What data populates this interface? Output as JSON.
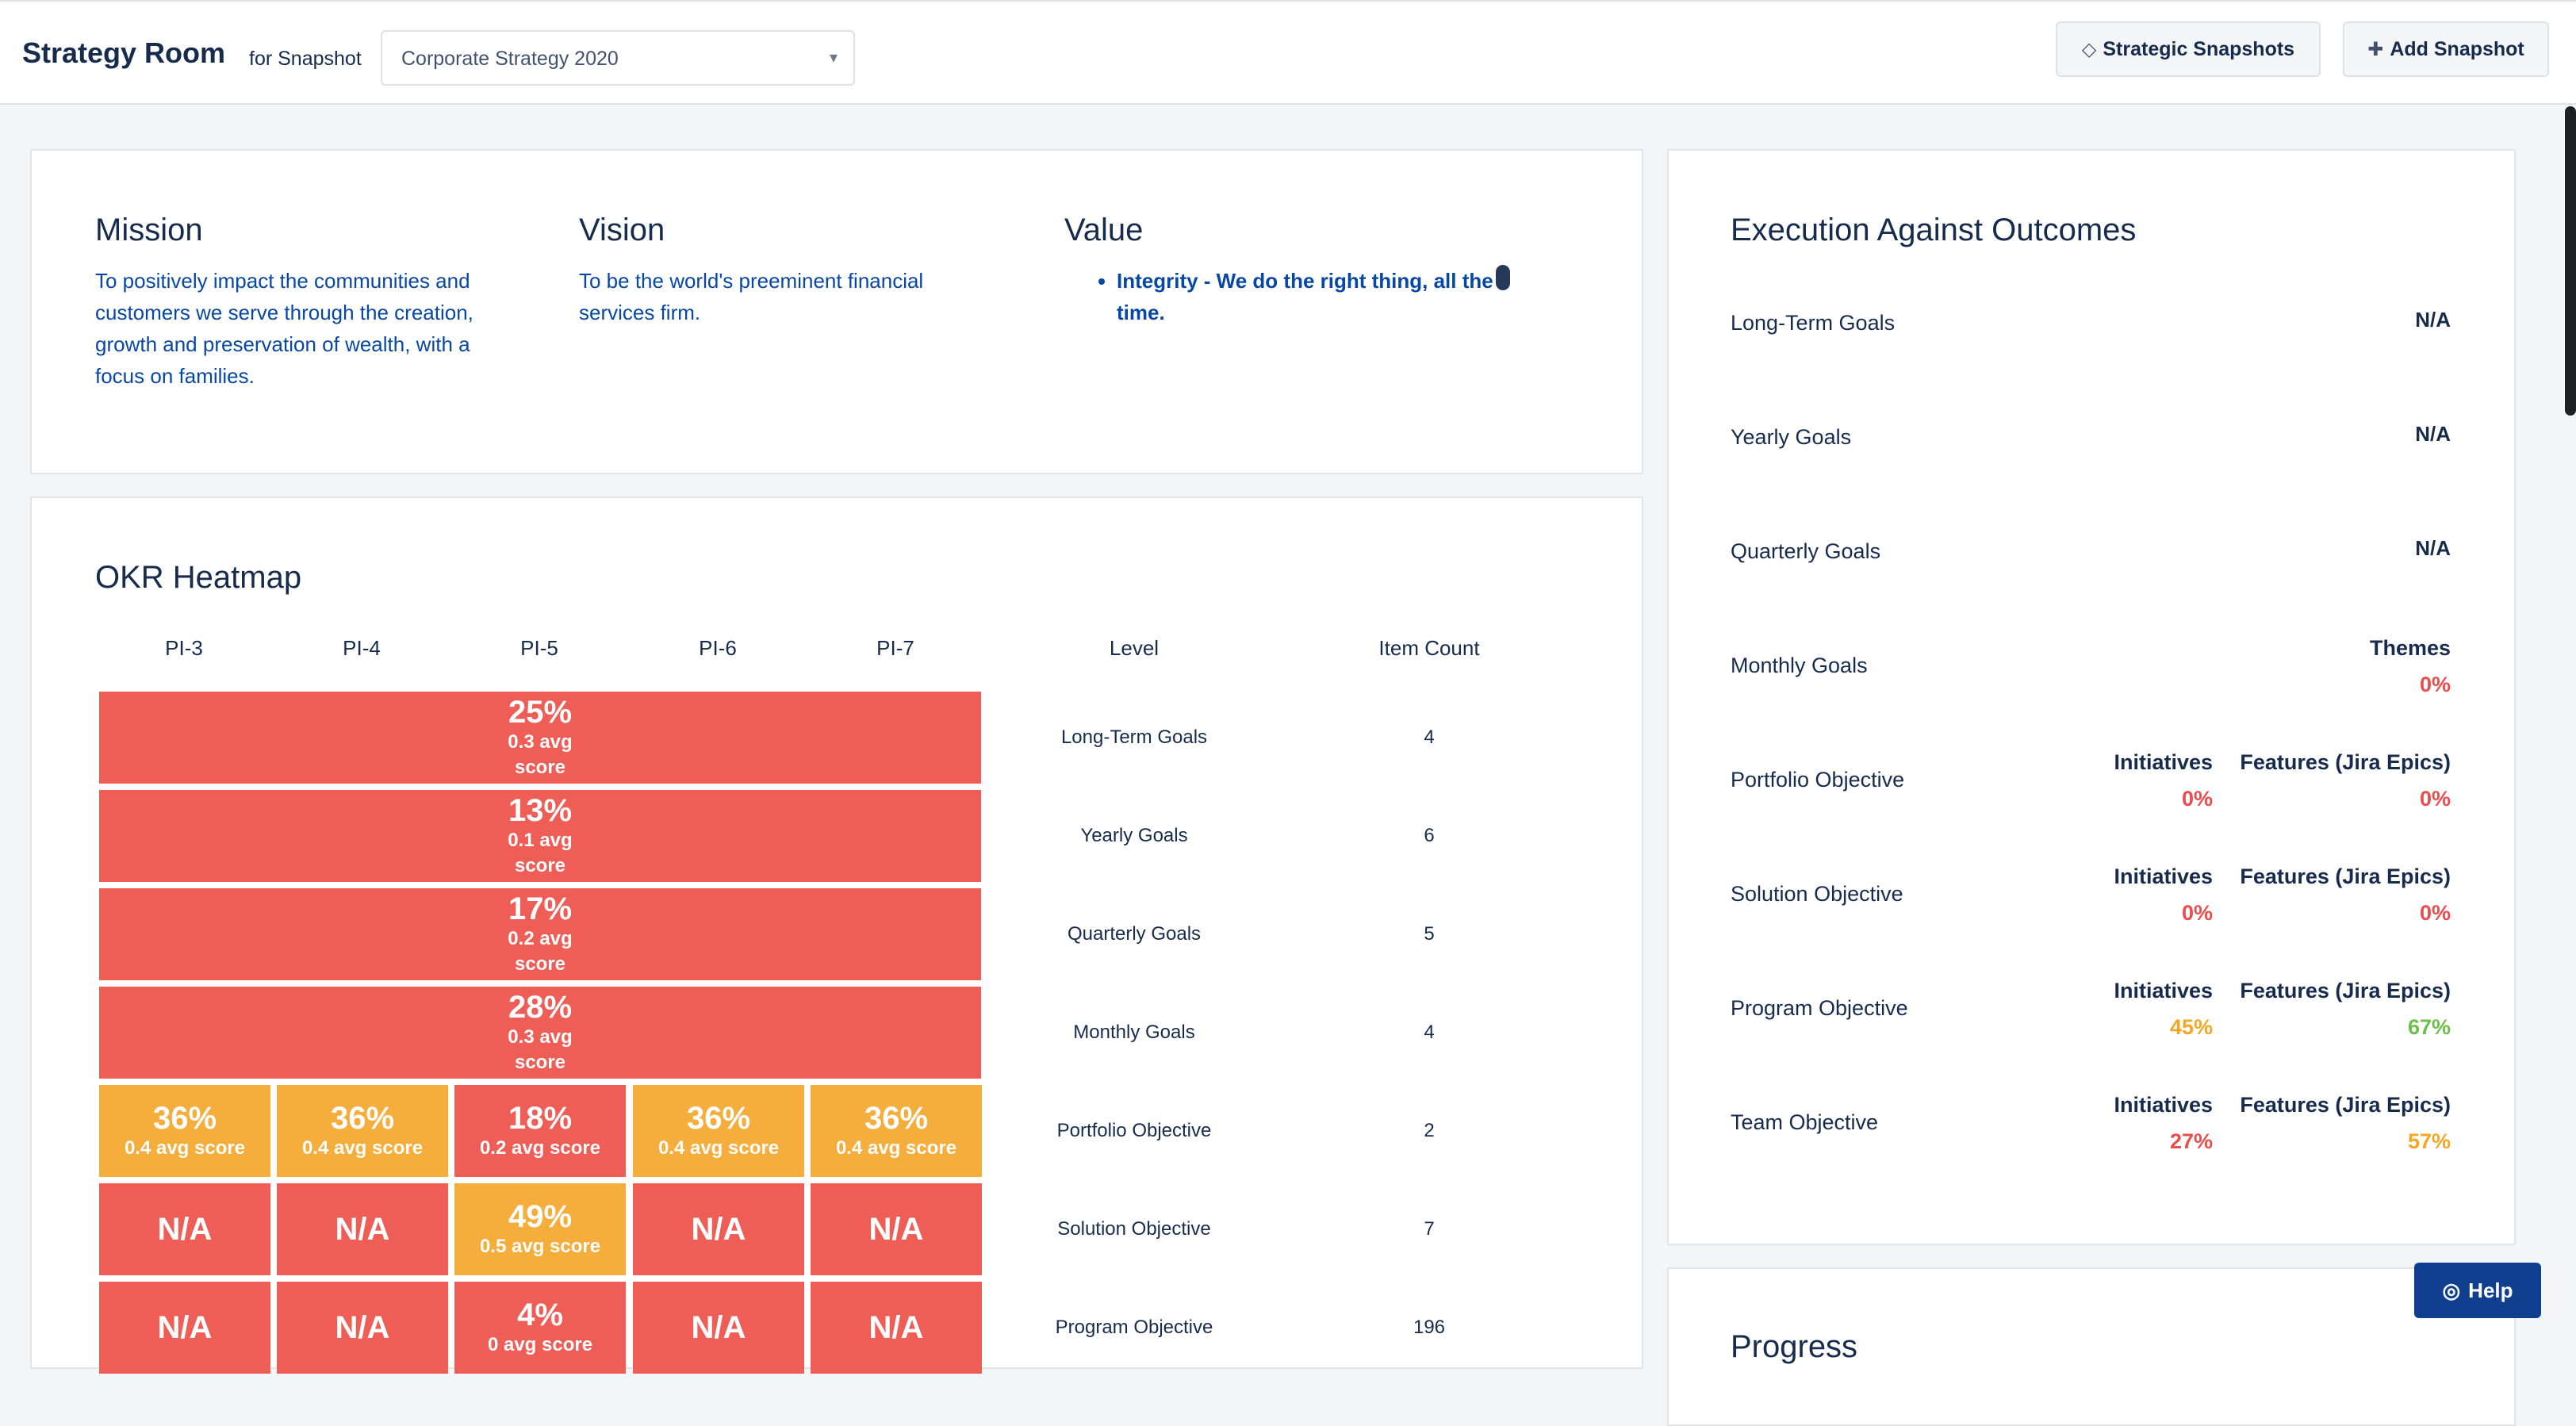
{
  "header": {
    "title": "Strategy Room",
    "for_label": "for Snapshot",
    "snapshot_selected": "Corporate Strategy 2020",
    "caret": "▾",
    "btn_snapshots": "Strategic Snapshots",
    "btn_snapshots_icon": "diamond-icon",
    "btn_add": "Add Snapshot",
    "btn_add_icon": "plus-icon"
  },
  "mvv": {
    "mission_title": "Mission",
    "mission_text": "To positively impact the communities and customers we serve through the creation, growth and preservation of wealth, with a focus on families.",
    "vision_title": "Vision",
    "vision_text": "To be the world's preeminent financial services firm.",
    "value_title": "Value",
    "value_items": [
      "Integrity - We do the right thing, all the time."
    ]
  },
  "heatmap": {
    "title": "OKR Heatmap",
    "pi_headers": [
      "PI-3",
      "PI-4",
      "PI-5",
      "PI-6",
      "PI-7"
    ],
    "level_header": "Level",
    "count_header": "Item Count",
    "rows": [
      {
        "level": "Long-Term Goals",
        "count": "4",
        "merged": {
          "pct": "25%",
          "avg": "0.3 avg score",
          "color": "#ee5e56"
        }
      },
      {
        "level": "Yearly Goals",
        "count": "6",
        "merged": {
          "pct": "13%",
          "avg": "0.1 avg score",
          "color": "#ee5e56"
        }
      },
      {
        "level": "Quarterly Goals",
        "count": "5",
        "merged": {
          "pct": "17%",
          "avg": "0.2 avg score",
          "color": "#ee5e56"
        }
      },
      {
        "level": "Monthly Goals",
        "count": "4",
        "merged": {
          "pct": "28%",
          "avg": "0.3 avg score",
          "color": "#ee5e56"
        }
      },
      {
        "level": "Portfolio Objective",
        "count": "2",
        "cells": [
          {
            "pct": "36%",
            "avg": "0.4 avg score",
            "color": "#f5ad3c"
          },
          {
            "pct": "36%",
            "avg": "0.4 avg score",
            "color": "#f5ad3c"
          },
          {
            "pct": "18%",
            "avg": "0.2 avg score",
            "color": "#ee5e56"
          },
          {
            "pct": "36%",
            "avg": "0.4 avg score",
            "color": "#f5ad3c"
          },
          {
            "pct": "36%",
            "avg": "0.4 avg score",
            "color": "#f5ad3c"
          }
        ]
      },
      {
        "level": "Solution Objective",
        "count": "7",
        "cells": [
          {
            "pct": "N/A",
            "avg": "",
            "color": "#ee5e56"
          },
          {
            "pct": "N/A",
            "avg": "",
            "color": "#ee5e56"
          },
          {
            "pct": "49%",
            "avg": "0.5 avg score",
            "color": "#f5ad3c"
          },
          {
            "pct": "N/A",
            "avg": "",
            "color": "#ee5e56"
          },
          {
            "pct": "N/A",
            "avg": "",
            "color": "#ee5e56"
          }
        ]
      },
      {
        "level": "Program Objective",
        "count": "196",
        "cells": [
          {
            "pct": "N/A",
            "avg": "",
            "color": "#ee5e56"
          },
          {
            "pct": "N/A",
            "avg": "",
            "color": "#ee5e56"
          },
          {
            "pct": "4%",
            "avg": "0 avg score",
            "color": "#ee5e56"
          },
          {
            "pct": "N/A",
            "avg": "",
            "color": "#ee5e56"
          },
          {
            "pct": "N/A",
            "avg": "",
            "color": "#ee5e56"
          }
        ]
      }
    ]
  },
  "execution": {
    "title": "Execution Against Outcomes",
    "long_term": {
      "label": "Long-Term Goals",
      "value": "N/A"
    },
    "yearly": {
      "label": "Yearly Goals",
      "value": "N/A"
    },
    "quarterly": {
      "label": "Quarterly Goals",
      "value": "N/A"
    },
    "monthly": {
      "label": "Monthly Goals",
      "col_label": "Themes",
      "col_value": "0%"
    },
    "portfolio": {
      "label": "Portfolio Objective",
      "initiatives": "0%",
      "features": "0%"
    },
    "solution": {
      "label": "Solution Objective",
      "initiatives": "0%",
      "features": "0%"
    },
    "program": {
      "label": "Program Objective",
      "initiatives": "45%",
      "features": "67%"
    },
    "team": {
      "label": "Team Objective",
      "initiatives": "27%",
      "features": "57%"
    },
    "initiatives_label": "Initiatives",
    "features_label": "Features (Jira Epics)"
  },
  "progress": {
    "title": "Progress"
  },
  "help": {
    "label": "Help",
    "icon": "lifebuoy-icon"
  },
  "colors": {
    "red": "#ee5e56",
    "orange": "#f5ad3c",
    "green": "#6cc04a",
    "link_blue": "#0747a6",
    "help_blue": "#0f3f8e"
  }
}
